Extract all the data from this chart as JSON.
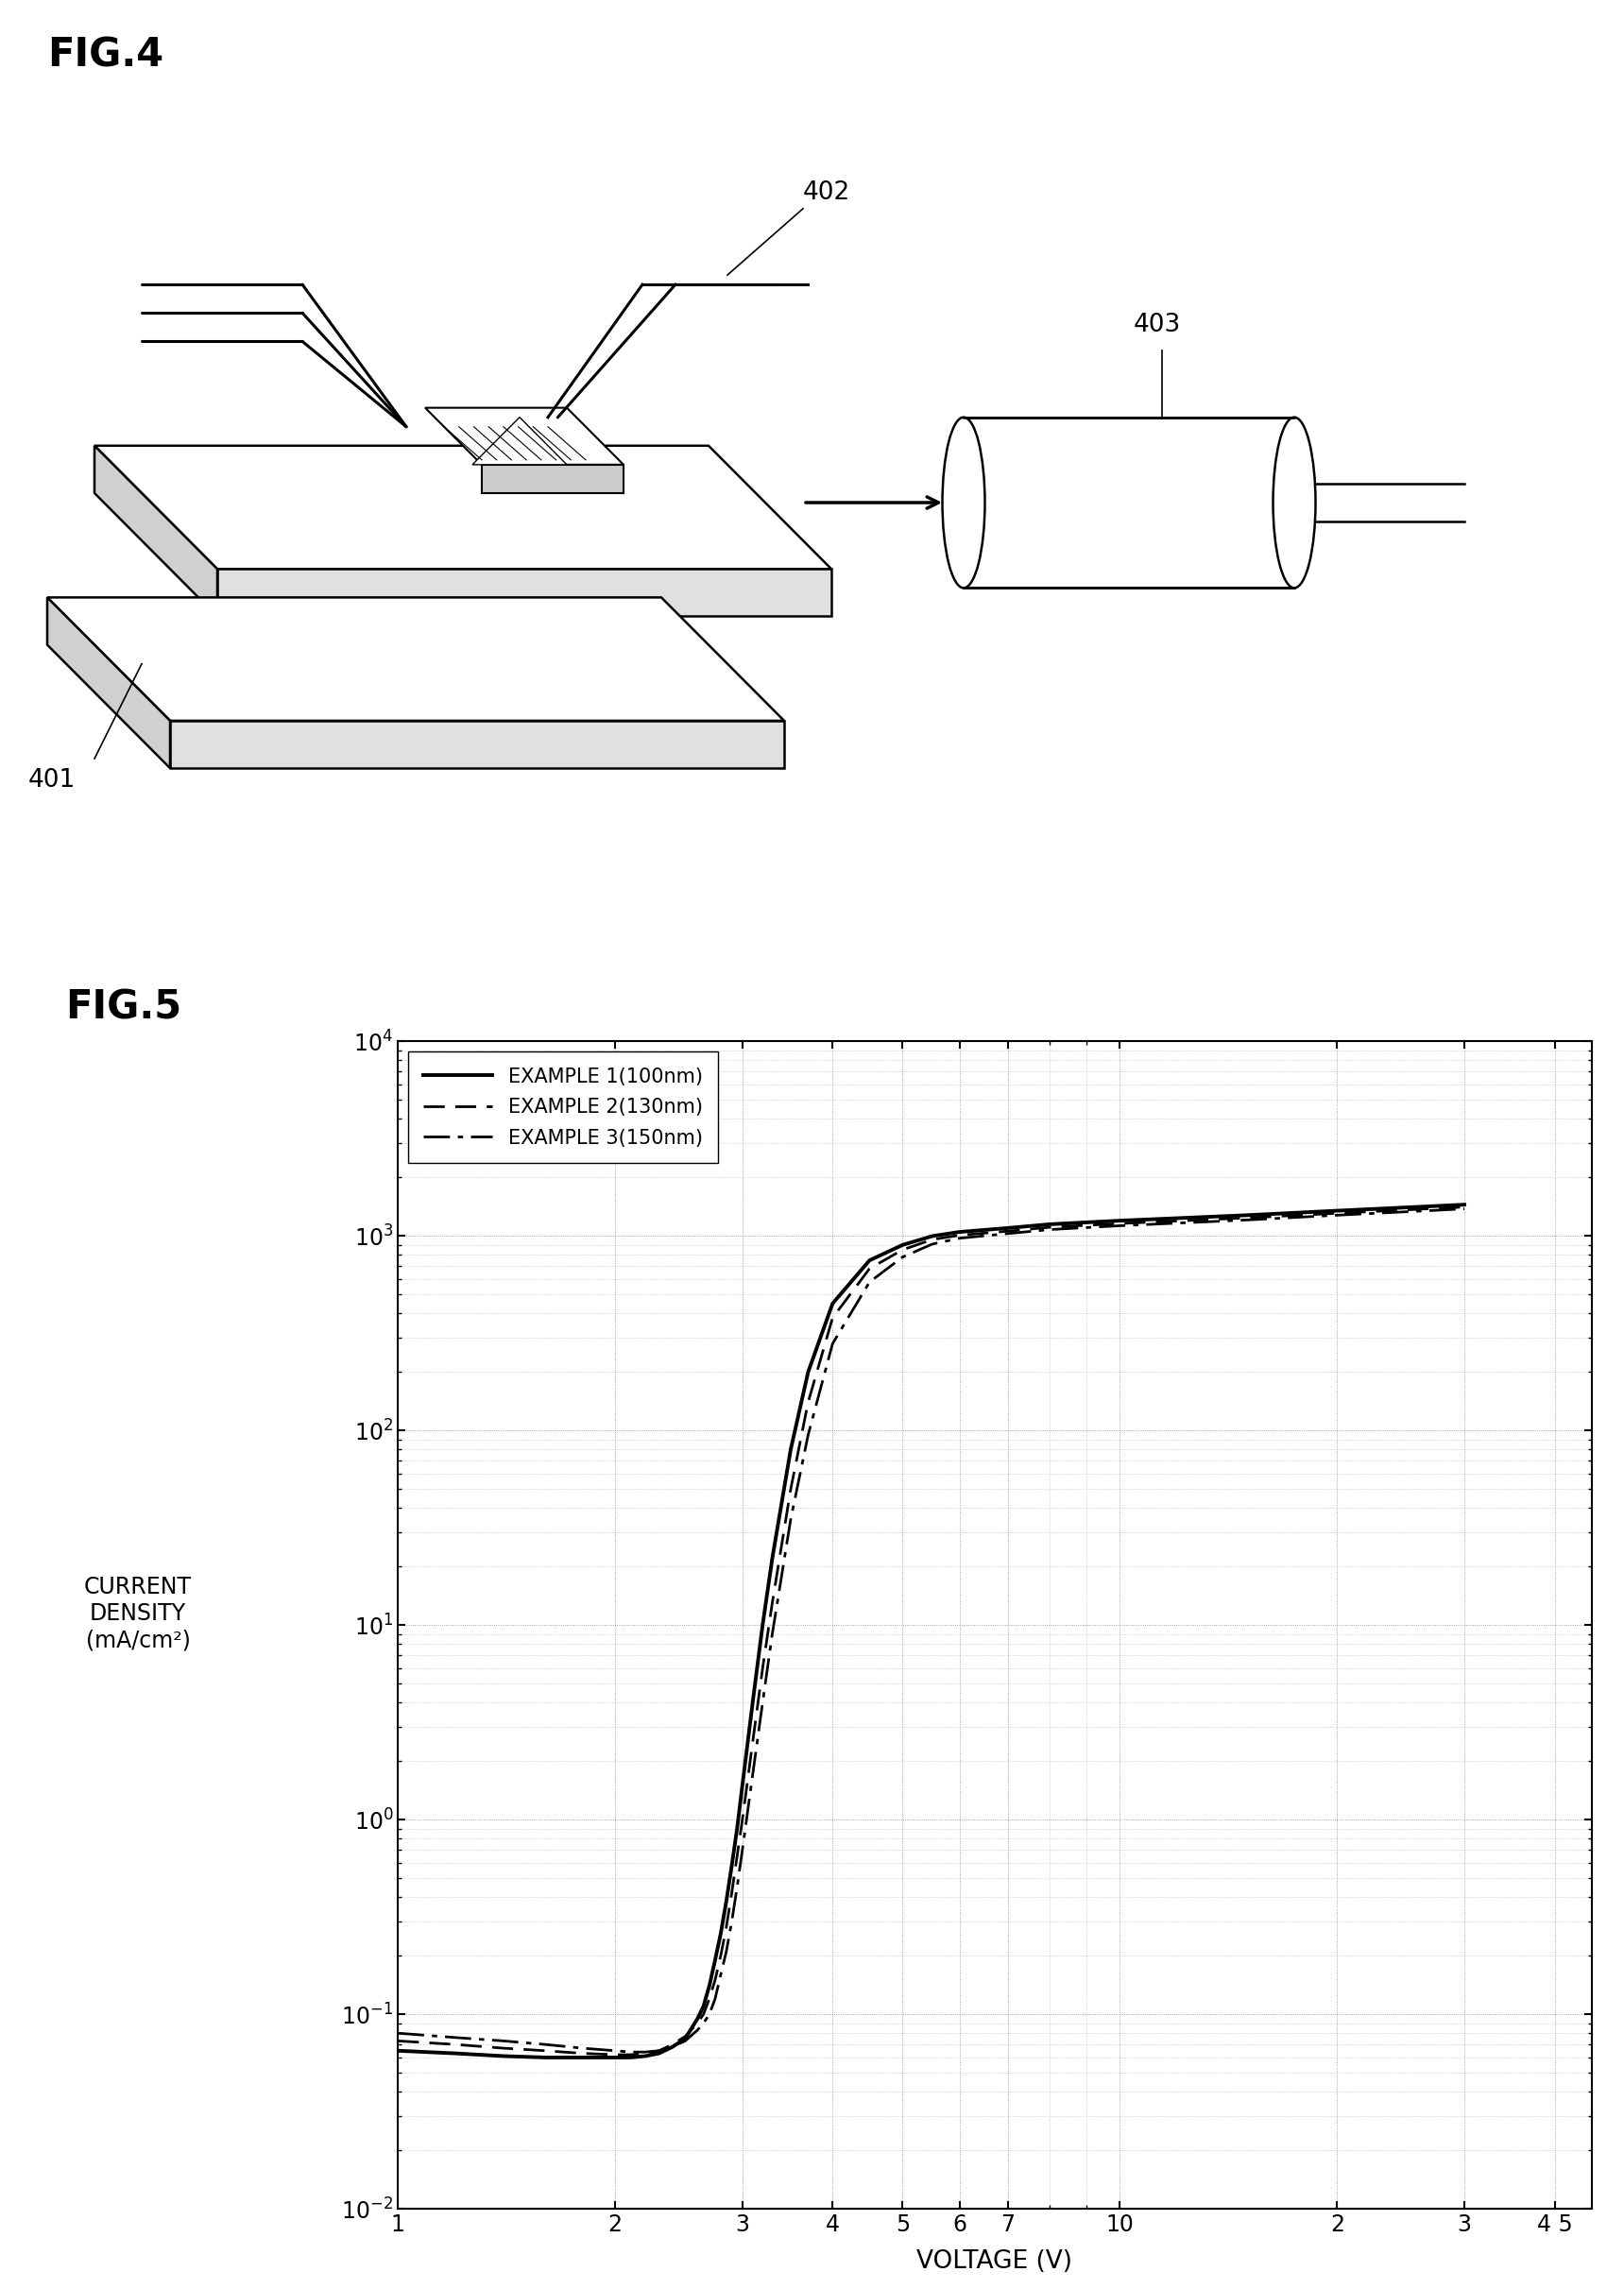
{
  "fig4_label": "FIG.4",
  "fig5_label": "FIG.5",
  "label401": "401",
  "label402": "402",
  "label403": "403",
  "ylabel_lines": [
    "CURRENT",
    "DENSITY",
    "(mA/cm²)"
  ],
  "xlabel": "VOLTAGE (V)",
  "legend": [
    {
      "label": "EXAMPLE 1(100nm)",
      "style": "solid"
    },
    {
      "label": "EXAMPLE 2(130nm)",
      "style": "dashed"
    },
    {
      "label": "EXAMPLE 3(150nm)",
      "style": "dashdot"
    }
  ],
  "xlim": [
    1,
    45
  ],
  "ylim": [
    0.01,
    10000
  ],
  "xtick_vals": [
    1,
    2,
    3,
    4,
    5,
    6,
    7,
    10,
    20,
    30,
    40
  ],
  "xtick_labels": [
    "1",
    "2",
    "3",
    "4",
    "5",
    "6",
    "7",
    "10",
    "2",
    "3",
    "4 5"
  ],
  "background_color": "#ffffff",
  "line_color": "#000000",
  "grid_color": "#999999",
  "ex1_x": [
    1.0,
    1.2,
    1.4,
    1.6,
    1.8,
    2.0,
    2.1,
    2.2,
    2.3,
    2.4,
    2.5,
    2.6,
    2.65,
    2.7,
    2.75,
    2.8,
    2.85,
    2.9,
    2.95,
    3.0,
    3.1,
    3.2,
    3.3,
    3.5,
    3.7,
    4.0,
    4.5,
    5.0,
    5.5,
    6.0,
    7.0,
    8.0,
    10.0,
    15.0,
    20.0,
    30.0
  ],
  "ex1_y": [
    0.065,
    0.063,
    0.061,
    0.06,
    0.06,
    0.06,
    0.06,
    0.061,
    0.063,
    0.068,
    0.075,
    0.095,
    0.11,
    0.14,
    0.19,
    0.26,
    0.38,
    0.58,
    0.9,
    1.5,
    4.0,
    10.0,
    22.0,
    80.0,
    200.0,
    450.0,
    750.0,
    900.0,
    1000.0,
    1050.0,
    1100.0,
    1150.0,
    1200.0,
    1280.0,
    1350.0,
    1450.0
  ],
  "ex2_x": [
    1.0,
    1.2,
    1.4,
    1.6,
    1.8,
    2.0,
    2.1,
    2.2,
    2.3,
    2.4,
    2.5,
    2.6,
    2.65,
    2.7,
    2.75,
    2.8,
    2.85,
    2.9,
    2.95,
    3.0,
    3.1,
    3.2,
    3.3,
    3.5,
    3.7,
    4.0,
    4.5,
    5.0,
    5.5,
    6.0,
    7.0,
    8.0,
    10.0,
    15.0,
    20.0,
    30.0
  ],
  "ex2_y": [
    0.073,
    0.07,
    0.067,
    0.065,
    0.063,
    0.062,
    0.062,
    0.063,
    0.065,
    0.07,
    0.077,
    0.09,
    0.1,
    0.12,
    0.15,
    0.2,
    0.28,
    0.42,
    0.65,
    1.0,
    2.5,
    6.0,
    13.0,
    50.0,
    140.0,
    380.0,
    680.0,
    850.0,
    960.0,
    1010.0,
    1060.0,
    1110.0,
    1160.0,
    1240.0,
    1310.0,
    1410.0
  ],
  "ex3_x": [
    1.0,
    1.2,
    1.4,
    1.6,
    1.8,
    2.0,
    2.1,
    2.2,
    2.3,
    2.4,
    2.5,
    2.6,
    2.65,
    2.7,
    2.75,
    2.8,
    2.85,
    2.9,
    2.95,
    3.0,
    3.1,
    3.2,
    3.3,
    3.5,
    3.7,
    4.0,
    4.5,
    5.0,
    5.5,
    6.0,
    7.0,
    8.0,
    10.0,
    15.0,
    20.0,
    30.0
  ],
  "ex3_y": [
    0.08,
    0.076,
    0.073,
    0.07,
    0.067,
    0.065,
    0.064,
    0.064,
    0.065,
    0.068,
    0.073,
    0.083,
    0.09,
    0.1,
    0.12,
    0.16,
    0.21,
    0.3,
    0.45,
    0.7,
    1.7,
    4.0,
    9.0,
    35.0,
    95.0,
    280.0,
    580.0,
    780.0,
    910.0,
    975.0,
    1030.0,
    1080.0,
    1130.0,
    1210.0,
    1280.0,
    1380.0
  ]
}
